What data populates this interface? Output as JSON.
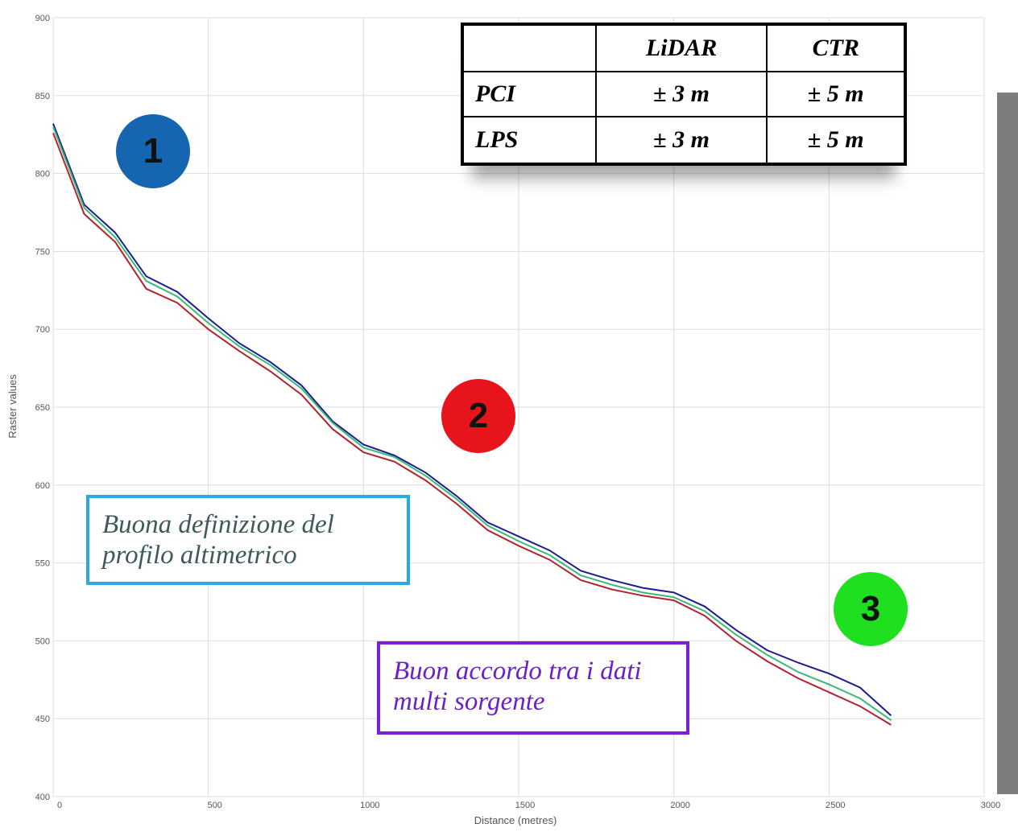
{
  "chart_data": {
    "type": "line",
    "xlabel": "Distance (metres)",
    "ylabel": "Raster values",
    "x": [
      0,
      100,
      200,
      300,
      400,
      500,
      600,
      700,
      800,
      900,
      1000,
      1100,
      1200,
      1300,
      1400,
      1500,
      1600,
      1700,
      1800,
      1900,
      2000,
      2100,
      2200,
      2300,
      2400,
      2500,
      2600,
      2700
    ],
    "series": [
      {
        "color": "#1c1c8f",
        "values": [
          832,
          780,
          762,
          734,
          724,
          707,
          691,
          679,
          664,
          641,
          626,
          619,
          608,
          593,
          576,
          567,
          558,
          545,
          539,
          534,
          531,
          522,
          507,
          494,
          486,
          479,
          470,
          452
        ]
      },
      {
        "color": "#b3222e",
        "values": [
          826,
          774,
          756,
          726,
          717,
          700,
          686,
          673,
          658,
          636,
          621,
          615,
          603,
          588,
          571,
          561,
          552,
          539,
          533,
          529,
          526,
          516,
          500,
          487,
          476,
          467,
          458,
          446
        ]
      },
      {
        "color": "#3cb878",
        "values": [
          830,
          778,
          759,
          731,
          721,
          704,
          689,
          677,
          662,
          640,
          624,
          618,
          606,
          591,
          574,
          564,
          555,
          542,
          536,
          531,
          528,
          519,
          504,
          491,
          480,
          472,
          463,
          449
        ]
      }
    ],
    "xlim": [
      0,
      3000
    ],
    "xticks": [
      0,
      500,
      1000,
      1500,
      2000,
      2500,
      3000
    ],
    "ylim": [
      400,
      900
    ],
    "yticks": [
      400,
      450,
      500,
      550,
      600,
      650,
      700,
      750,
      800,
      850,
      900
    ],
    "grid": true
  },
  "table": {
    "header": [
      "LiDAR",
      "CTR"
    ],
    "rows": [
      [
        "PCI",
        "± 3 m",
        "± 5 m"
      ],
      [
        "LPS",
        "± 3 m",
        "± 5 m"
      ]
    ]
  },
  "markers": [
    "1",
    "2",
    "3"
  ],
  "notes": [
    "Buona definizione del profilo altimetrico",
    "Buon accordo tra i dati multi sorgente"
  ]
}
